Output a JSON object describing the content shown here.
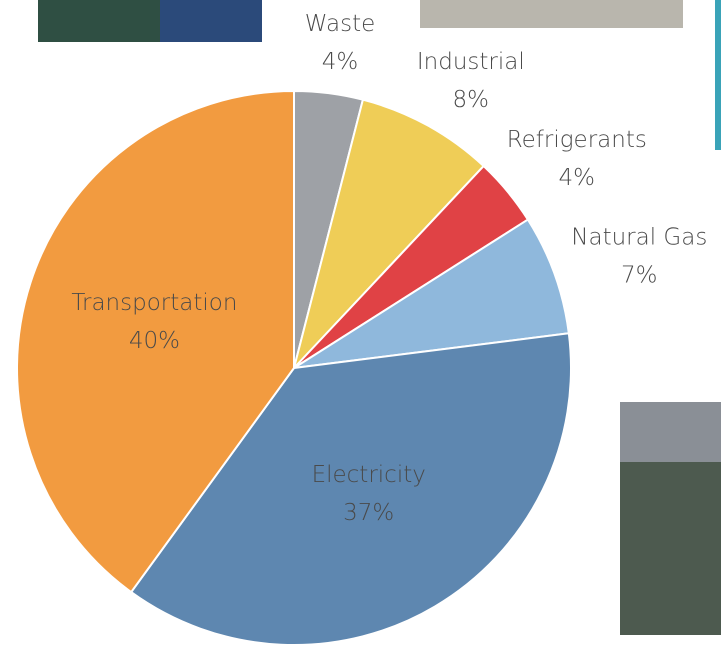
{
  "chart_data": {
    "type": "pie",
    "categories": [
      "Waste",
      "Industrial",
      "Refrigerants",
      "Natural Gas",
      "Electricity",
      "Transportation"
    ],
    "values": [
      4,
      8,
      4,
      7,
      37,
      40
    ],
    "value_labels": [
      "4%",
      "8%",
      "4%",
      "7%",
      "37%",
      "40%"
    ],
    "colors": [
      "#9ea1a6",
      "#efcd57",
      "#e04245",
      "#8fb8dc",
      "#5e87b0",
      "#f29b40"
    ]
  }
}
